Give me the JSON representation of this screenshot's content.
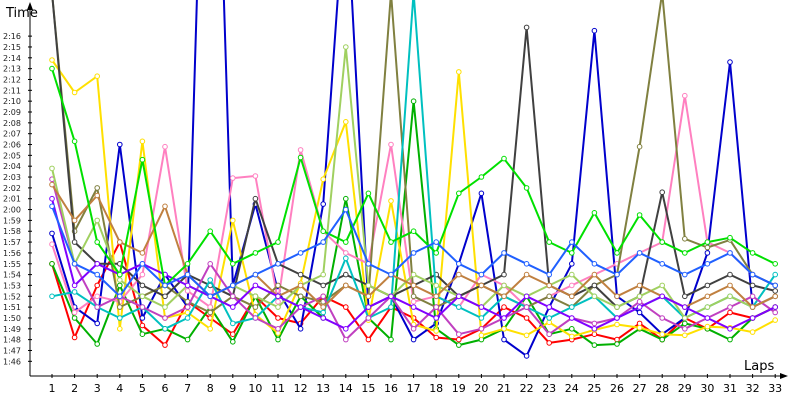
{
  "chart_data": {
    "type": "line",
    "ylabel": "Time",
    "xlabel": "Laps",
    "grid": false,
    "legend": "none",
    "x": [
      1,
      2,
      3,
      4,
      5,
      6,
      7,
      8,
      9,
      10,
      11,
      12,
      13,
      14,
      15,
      16,
      17,
      18,
      19,
      20,
      21,
      22,
      23,
      24,
      25,
      26,
      27,
      28,
      29,
      30,
      31,
      32,
      33
    ],
    "x_tick_labels": [
      "1",
      "2",
      "3",
      "4",
      "5",
      "6",
      "7",
      "8",
      "9",
      "10",
      "11",
      "12",
      "13",
      "14",
      "15",
      "16",
      "17",
      "18",
      "19",
      "20",
      "21",
      "22",
      "23",
      "24",
      "25",
      "26",
      "27",
      "28",
      "29",
      "30",
      "31",
      "32",
      "33"
    ],
    "ylim_seconds": [
      104,
      139.5
    ],
    "y_tick_labels": [
      "1:46",
      "1:47",
      "1:48",
      "1:49",
      "1:50",
      "1:51",
      "1:52",
      "1:53",
      "1:54",
      "1:55",
      "1:56",
      "1:57",
      "1:58",
      "1:59",
      "2:00",
      "2:01",
      "2:02",
      "2:03",
      "2:04",
      "2:05",
      "2:06",
      "2:07",
      "2:08",
      "2:09",
      "2:10",
      "2:11",
      "2:12",
      "2:13",
      "2:14",
      "2:15",
      "2:16"
    ],
    "y_tick_seconds": [
      106,
      107,
      108,
      109,
      110,
      111,
      112,
      113,
      114,
      115,
      116,
      117,
      118,
      119,
      120,
      121,
      122,
      123,
      124,
      125,
      126,
      127,
      128,
      129,
      130,
      131,
      132,
      133,
      134,
      135,
      136
    ],
    "series": [
      {
        "color": "#ff0000",
        "values": [
          115,
          108.2,
          113,
          117,
          109.3,
          107.5,
          111.5,
          110,
          108.5,
          112,
          110,
          109.5,
          112,
          111,
          108,
          111,
          110,
          108.2,
          108,
          109,
          111,
          110,
          107.7,
          108,
          108.5,
          108,
          109.5,
          108,
          110,
          109,
          110.5,
          110,
          111
        ]
      },
      {
        "color": "#0000cc",
        "values": [
          117.8,
          111,
          109.5,
          126,
          110,
          114,
          111,
          180,
          113,
          120.5,
          112.5,
          109,
          120.5,
          150,
          111,
          112,
          108,
          109.5,
          115,
          121.5,
          108,
          106.5,
          111,
          115,
          136.5,
          112,
          110.5,
          108.5,
          110,
          116,
          133.6,
          111,
          112
        ]
      },
      {
        "color": "#00b000",
        "values": [
          115,
          110,
          107.6,
          113,
          108.5,
          109,
          108,
          111,
          107.8,
          112,
          108,
          112,
          110,
          121,
          110,
          108,
          130,
          109,
          107.5,
          108,
          109,
          112,
          108.5,
          109,
          107.5,
          107.6,
          109,
          108,
          109.5,
          109,
          108,
          110,
          111
        ]
      },
      {
        "color": "#ffe000",
        "values": [
          133.8,
          130.8,
          132.3,
          109,
          126.3,
          110,
          110.5,
          109,
          119,
          110.3,
          108.6,
          113.2,
          122.8,
          128.1,
          109.8,
          120.8,
          109.4,
          108.8,
          132.7,
          108.4,
          109,
          108.4,
          109.6,
          108.3,
          108.9,
          109.4,
          109.1,
          108.5,
          108.4,
          109.2,
          109.1,
          108.7,
          109.8
        ]
      },
      {
        "color": "#ff80c0",
        "values": [
          116.8,
          110.5,
          112,
          111.5,
          114,
          125.8,
          112.5,
          111,
          122.9,
          123.1,
          111.5,
          125.5,
          118,
          116,
          115,
          126,
          111.5,
          112,
          111,
          114,
          113,
          111,
          112,
          113,
          114,
          115,
          116,
          117,
          130.5,
          117,
          116,
          114,
          113
        ]
      },
      {
        "color": "#808040",
        "values": [
          140,
          118,
          122,
          111,
          112,
          113,
          111.5,
          110.5,
          112,
          111,
          113,
          112,
          111.5,
          113,
          112,
          140,
          112,
          111,
          112,
          113,
          112,
          111,
          112,
          111,
          113,
          114,
          125.8,
          140,
          117.3,
          116.5,
          117.2,
          114,
          113
        ]
      },
      {
        "color": "#404040",
        "values": [
          140,
          117,
          115,
          115,
          113,
          112,
          114,
          113,
          112,
          121,
          115,
          114,
          113,
          114,
          113,
          112,
          113,
          114,
          112,
          113,
          114,
          136.8,
          113,
          112,
          113,
          111,
          112,
          121.6,
          112,
          113,
          114,
          113,
          112.5
        ]
      },
      {
        "color": "#00c0c0",
        "values": [
          112,
          112.4,
          111,
          110,
          111,
          109,
          110,
          113.5,
          109.5,
          110,
          112,
          111,
          110.5,
          115.5,
          110,
          111,
          140,
          112,
          111,
          110,
          112,
          111,
          110,
          111,
          112,
          110,
          111,
          112,
          110,
          111,
          112,
          111,
          114
        ]
      },
      {
        "color": "#c040c0",
        "values": [
          122.8,
          115,
          111,
          112,
          111,
          110,
          111,
          115,
          112,
          110,
          109,
          111,
          112,
          108,
          110,
          112,
          109,
          111,
          108.5,
          109,
          110,
          111,
          108.5,
          110,
          109.5,
          110,
          111.5,
          110,
          109,
          110,
          111,
          112,
          110.5
        ]
      },
      {
        "color": "#a0d060",
        "values": [
          123.8,
          115,
          119,
          113.5,
          112,
          111,
          113,
          112,
          113,
          112,
          111,
          113,
          114,
          135,
          113,
          112,
          114,
          113,
          112,
          111,
          113,
          112,
          113,
          114,
          112,
          111,
          112,
          113,
          110,
          111,
          112,
          111,
          112
        ]
      },
      {
        "color": "#c08040",
        "values": [
          122.3,
          119,
          121.3,
          117,
          116,
          120.3,
          114,
          112,
          113,
          114,
          112,
          113,
          111,
          113,
          112,
          114,
          113,
          112,
          114,
          113,
          112,
          114,
          113,
          112,
          114,
          112,
          113,
          112,
          111,
          112,
          113,
          111,
          112
        ]
      },
      {
        "color": "#8000ff",
        "values": [
          121,
          113,
          115,
          114,
          115,
          114,
          113,
          112,
          111,
          113,
          112,
          111,
          110,
          109,
          111,
          112,
          111,
          110,
          112,
          111,
          110,
          112,
          111,
          110,
          109,
          110,
          111,
          112,
          111,
          110,
          109,
          110,
          111
        ]
      },
      {
        "color": "#00e000",
        "values": [
          133,
          126.3,
          117,
          114,
          124.6,
          113,
          115,
          118,
          115,
          116,
          117,
          124.8,
          118,
          117,
          121.5,
          117,
          118,
          116,
          121.5,
          123,
          124.7,
          122,
          117,
          116,
          119.7,
          116,
          119.5,
          117,
          116,
          117,
          117.4,
          116,
          115
        ]
      },
      {
        "color": "#2060ff",
        "values": [
          120.3,
          115,
          114,
          112,
          115,
          113,
          114,
          112,
          113,
          114,
          115,
          116,
          117,
          120,
          115,
          114,
          116,
          117,
          115,
          114,
          116,
          115,
          114,
          117,
          115,
          114,
          116,
          115,
          114,
          115,
          116,
          114,
          113
        ]
      }
    ]
  }
}
